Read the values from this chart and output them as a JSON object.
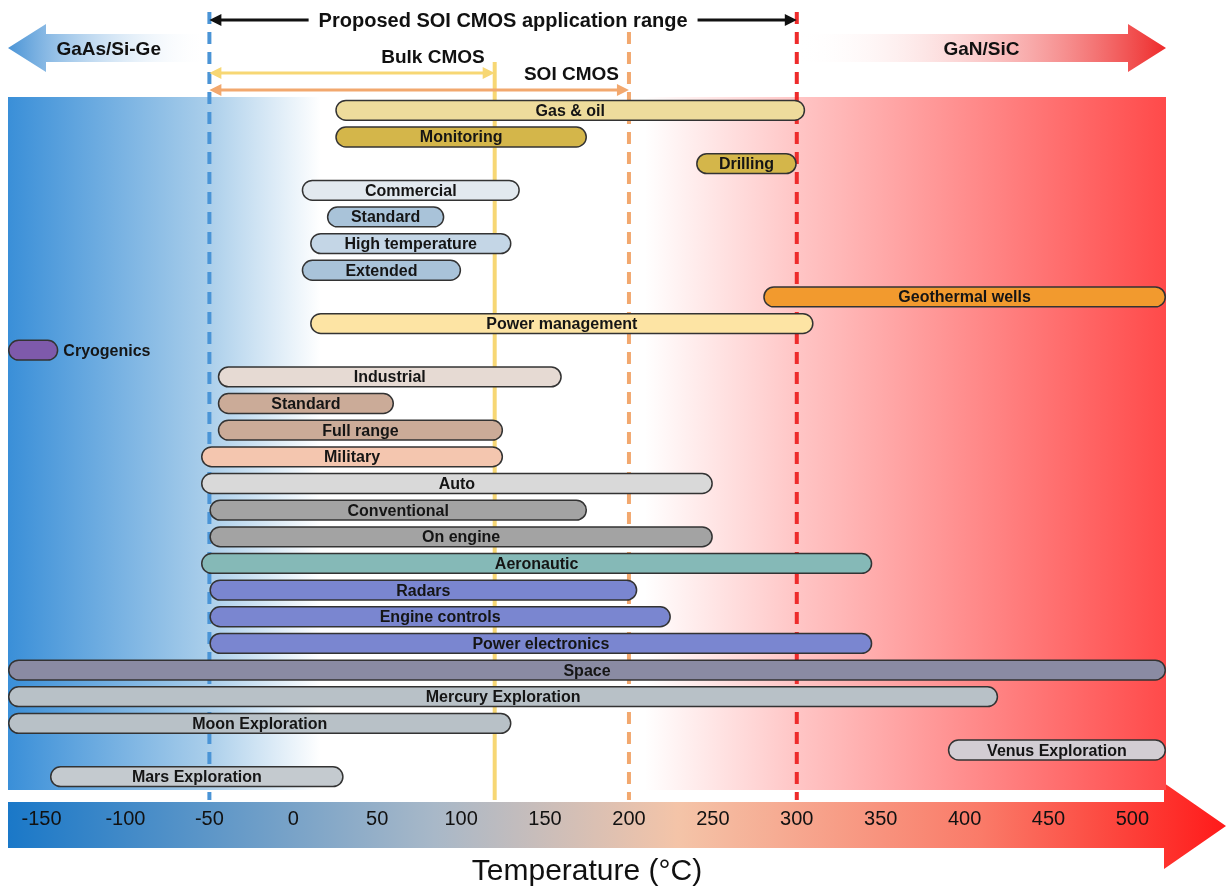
{
  "chart_data": {
    "type": "bar",
    "orientation": "horizontal",
    "xlabel": "Temperature (°C)",
    "xlim": [
      -170,
      520
    ],
    "xticks": [
      -150,
      -100,
      -50,
      0,
      50,
      100,
      150,
      200,
      250,
      300,
      350,
      400,
      450,
      500
    ],
    "tick_labels": "x",
    "grid": false,
    "categories": [
      null,
      null,
      null,
      null,
      null,
      null,
      null,
      null,
      null,
      null,
      null,
      null,
      null,
      null,
      null,
      null,
      null,
      null,
      null,
      null,
      null,
      null,
      null,
      null,
      null,
      null
    ],
    "base": [
      25,
      25,
      240,
      5,
      20,
      10,
      5,
      280,
      10,
      -170,
      -45,
      -45,
      -45,
      -55,
      -55,
      -50,
      -50,
      -55,
      -50,
      -50,
      -50,
      -170,
      -170,
      -170,
      390,
      -145
    ],
    "values": [
      280,
      150,
      60,
      130,
      70,
      120,
      95,
      240,
      300,
      30,
      205,
      105,
      170,
      180,
      305,
      225,
      300,
      400,
      255,
      275,
      395,
      690,
      590,
      300,
      130,
      175
    ],
    "value_labels": [
      "Gas & oil",
      "Monitoring",
      "Drilling",
      "Commercial",
      "Standard",
      "High temperature",
      "Extended",
      "Geothermal wells",
      "Power management",
      "Cryogenics",
      "Industrial",
      "Standard",
      "Full range",
      "Military",
      "Auto",
      "Conventional",
      "On engine",
      "Aeronautic",
      "Radars",
      "Engine controls",
      "Power electronics",
      "Space",
      "Mercury Exploration",
      "Moon Exploration",
      "Venus Exploration",
      "Mars Exploration"
    ],
    "colors": [
      "#eedc9c",
      "#d4b64a",
      "#d4b64a",
      "#e2e9ef",
      "#a9c3d9",
      "#c4d6e6",
      "#a9c3d9",
      "#f29a2e",
      "#fde4a4",
      "#7e5aab",
      "#e6dad3",
      "#cbab98",
      "#cbab98",
      "#f4c6af",
      "#d9d9d9",
      "#a3a3a3",
      "#a3a3a3",
      "#85b9b7",
      "#7a86d0",
      "#7a86d0",
      "#7a86d0",
      "#8a8ba3",
      "#b8c1c7",
      "#b8c1c7",
      "#d2cdd3",
      "#c4cacf"
    ],
    "ref_lines": [
      {
        "axis": "x",
        "value": -50,
        "color": "#4a94d6",
        "line_style": "dashed"
      },
      {
        "axis": "x",
        "value": 120,
        "color": "#f7d774"
      },
      {
        "axis": "x",
        "value": 200,
        "color": "#f2a86e",
        "line_style": "dashed"
      },
      {
        "axis": "x",
        "value": 300,
        "color": "#ee2b2b",
        "line_style": "dashed"
      }
    ],
    "annotations": [
      "Proposed SOI CMOS application range",
      "Bulk CMOS",
      "SOI CMOS",
      "GaAs/Si-Ge",
      "GaN/SiC"
    ]
  }
}
